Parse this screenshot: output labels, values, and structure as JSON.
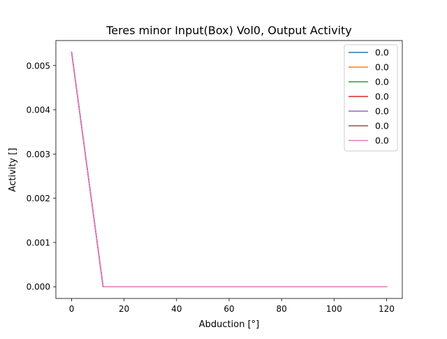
{
  "chart_data": {
    "type": "line",
    "title": "Teres minor Input(Box) Vol0, Output Activity",
    "xlabel": "Abduction [°]",
    "ylabel": "Activity []",
    "xlim": [
      -6,
      126
    ],
    "ylim": [
      -0.000265,
      0.005565
    ],
    "xticks": [
      0,
      20,
      40,
      60,
      80,
      100,
      120
    ],
    "xtick_labels": [
      "0",
      "20",
      "40",
      "60",
      "80",
      "100",
      "120"
    ],
    "yticks": [
      0.0,
      0.001,
      0.002,
      0.003,
      0.004,
      0.005
    ],
    "ytick_labels": [
      "0.000",
      "0.001",
      "0.002",
      "0.003",
      "0.004",
      "0.005"
    ],
    "grid": false,
    "legend_position": "top-right",
    "x": [
      0,
      12,
      24,
      36,
      48,
      60,
      72,
      84,
      96,
      108,
      120
    ],
    "series": [
      {
        "name": "0.0",
        "color": "#1f77b4",
        "values": [
          0.0053,
          0,
          0,
          0,
          0,
          0,
          0,
          0,
          0,
          0,
          0
        ]
      },
      {
        "name": "0.0",
        "color": "#ff7f0e",
        "values": [
          0.0053,
          0,
          0,
          0,
          0,
          0,
          0,
          0,
          0,
          0,
          0
        ]
      },
      {
        "name": "0.0",
        "color": "#2ca02c",
        "values": [
          0.0053,
          0,
          0,
          0,
          0,
          0,
          0,
          0,
          0,
          0,
          0
        ]
      },
      {
        "name": "0.0",
        "color": "#d62728",
        "values": [
          0.0053,
          0,
          0,
          0,
          0,
          0,
          0,
          0,
          0,
          0,
          0
        ]
      },
      {
        "name": "0.0",
        "color": "#9467bd",
        "values": [
          0.0053,
          0,
          0,
          0,
          0,
          0,
          0,
          0,
          0,
          0,
          0
        ]
      },
      {
        "name": "0.0",
        "color": "#8c564b",
        "values": [
          0.0053,
          0,
          0,
          0,
          0,
          0,
          0,
          0,
          0,
          0,
          0
        ]
      },
      {
        "name": "0.0",
        "color": "#e377c2",
        "values": [
          0.0053,
          0,
          0,
          0,
          0,
          0,
          0,
          0,
          0,
          0,
          0
        ]
      }
    ]
  }
}
